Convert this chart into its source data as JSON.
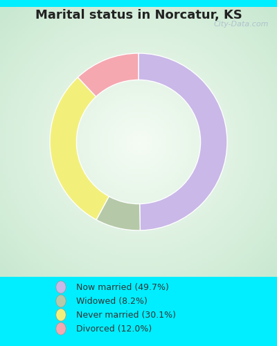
{
  "title": "Marital status in Norcatur, KS",
  "categories": [
    "Now married",
    "Widowed",
    "Never married",
    "Divorced"
  ],
  "values": [
    49.7,
    8.2,
    30.1,
    12.0
  ],
  "colors": [
    "#c9b8e8",
    "#b5c9a8",
    "#f2f07a",
    "#f5a8b0"
  ],
  "legend_labels": [
    "Now married (49.7%)",
    "Widowed (8.2%)",
    "Never married (30.1%)",
    "Divorced (12.0%)"
  ],
  "bg_color": "#00eeff",
  "chart_bg": "#d8ede0",
  "title_fontsize": 13,
  "watermark": "City-Data.com",
  "donut_width": 0.3,
  "startangle": 90
}
